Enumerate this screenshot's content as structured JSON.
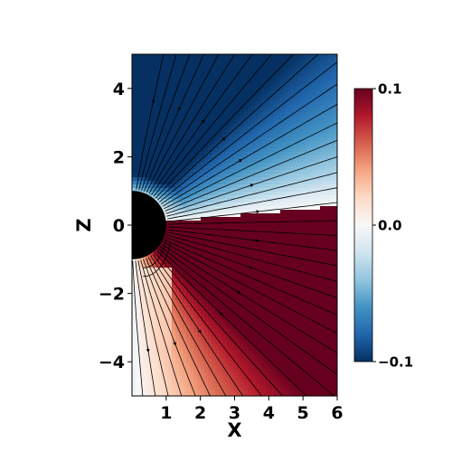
{
  "chart_data": {
    "type": "heatmap",
    "title": "",
    "xlabel": "X",
    "ylabel": "Z",
    "xlim": [
      0,
      6
    ],
    "ylim": [
      -5,
      5
    ],
    "x_ticks": [
      "1",
      "2",
      "3",
      "4",
      "5",
      "6"
    ],
    "y_ticks": [
      "4",
      "2",
      "0",
      "−2",
      "−4"
    ],
    "x_tick_values": [
      1,
      2,
      3,
      4,
      5,
      6
    ],
    "y_tick_values": [
      4,
      2,
      0,
      -2,
      -4
    ],
    "colormap": "RdBu_r",
    "colorbar": {
      "range": [
        -0.1,
        0.1
      ],
      "ticks": [
        "0.1",
        "0.0",
        "−0.1"
      ],
      "tick_values": [
        0.1,
        0.0,
        -0.1
      ]
    },
    "central_body": {
      "shape": "circle",
      "center": [
        0,
        0
      ],
      "radius": 1,
      "color": "#000000"
    },
    "overlay": "streamlines",
    "colors": {
      "max": "#67001f",
      "zero": "#f7f7f7",
      "min": "#053061"
    }
  }
}
